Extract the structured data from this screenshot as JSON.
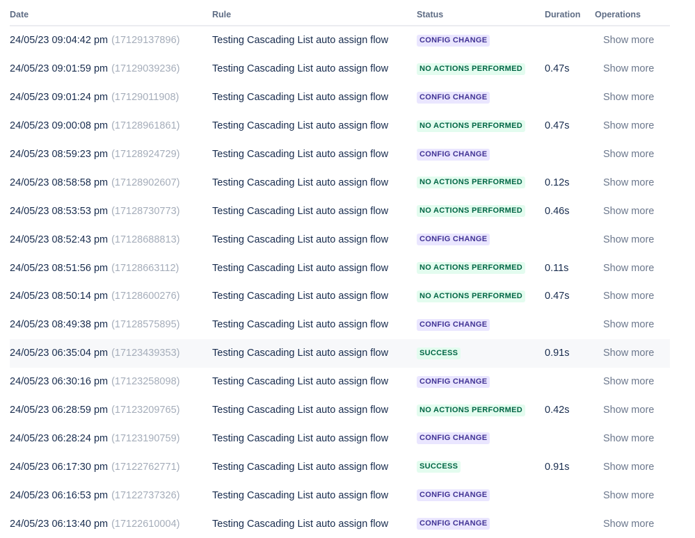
{
  "headers": {
    "date": "Date",
    "rule": "Rule",
    "status": "Status",
    "duration": "Duration",
    "operations": "Operations"
  },
  "status_colors": {
    "config": {
      "bg": "#eae6ff",
      "fg": "#403294"
    },
    "noaction": {
      "bg": "#e3fcef",
      "fg": "#006644"
    },
    "success": {
      "bg": "#e3fcef",
      "fg": "#006644"
    }
  },
  "rows": [
    {
      "date": "24/05/23 09:04:42 pm",
      "id": "(17129137896)",
      "rule": "Testing Cascading List auto assign flow",
      "status": "CONFIG CHANGE",
      "status_type": "config",
      "duration": "",
      "action": "Show more"
    },
    {
      "date": "24/05/23 09:01:59 pm",
      "id": "(17129039236)",
      "rule": "Testing Cascading List auto assign flow",
      "status": "NO ACTIONS PERFORMED",
      "status_type": "noaction",
      "duration": "0.47s",
      "action": "Show more"
    },
    {
      "date": "24/05/23 09:01:24 pm",
      "id": "(17129011908)",
      "rule": "Testing Cascading List auto assign flow",
      "status": "CONFIG CHANGE",
      "status_type": "config",
      "duration": "",
      "action": "Show more"
    },
    {
      "date": "24/05/23 09:00:08 pm",
      "id": "(17128961861)",
      "rule": "Testing Cascading List auto assign flow",
      "status": "NO ACTIONS PERFORMED",
      "status_type": "noaction",
      "duration": "0.47s",
      "action": "Show more"
    },
    {
      "date": "24/05/23 08:59:23 pm",
      "id": "(17128924729)",
      "rule": "Testing Cascading List auto assign flow",
      "status": "CONFIG CHANGE",
      "status_type": "config",
      "duration": "",
      "action": "Show more"
    },
    {
      "date": "24/05/23 08:58:58 pm",
      "id": "(17128902607)",
      "rule": "Testing Cascading List auto assign flow",
      "status": "NO ACTIONS PERFORMED",
      "status_type": "noaction",
      "duration": "0.12s",
      "action": "Show more"
    },
    {
      "date": "24/05/23 08:53:53 pm",
      "id": "(17128730773)",
      "rule": "Testing Cascading List auto assign flow",
      "status": "NO ACTIONS PERFORMED",
      "status_type": "noaction",
      "duration": "0.46s",
      "action": "Show more"
    },
    {
      "date": "24/05/23 08:52:43 pm",
      "id": "(17128688813)",
      "rule": "Testing Cascading List auto assign flow",
      "status": "CONFIG CHANGE",
      "status_type": "config",
      "duration": "",
      "action": "Show more"
    },
    {
      "date": "24/05/23 08:51:56 pm",
      "id": "(17128663112)",
      "rule": "Testing Cascading List auto assign flow",
      "status": "NO ACTIONS PERFORMED",
      "status_type": "noaction",
      "duration": "0.11s",
      "action": "Show more"
    },
    {
      "date": "24/05/23 08:50:14 pm",
      "id": "(17128600276)",
      "rule": "Testing Cascading List auto assign flow",
      "status": "NO ACTIONS PERFORMED",
      "status_type": "noaction",
      "duration": "0.47s",
      "action": "Show more"
    },
    {
      "date": "24/05/23 08:49:38 pm",
      "id": "(17128575895)",
      "rule": "Testing Cascading List auto assign flow",
      "status": "CONFIG CHANGE",
      "status_type": "config",
      "duration": "",
      "action": "Show more"
    },
    {
      "date": "24/05/23 06:35:04 pm",
      "id": "(17123439353)",
      "rule": "Testing Cascading List auto assign flow",
      "status": "SUCCESS",
      "status_type": "success",
      "duration": "0.91s",
      "action": "Show more",
      "highlighted": true
    },
    {
      "date": "24/05/23 06:30:16 pm",
      "id": "(17123258098)",
      "rule": "Testing Cascading List auto assign flow",
      "status": "CONFIG CHANGE",
      "status_type": "config",
      "duration": "",
      "action": "Show more"
    },
    {
      "date": "24/05/23 06:28:59 pm",
      "id": "(17123209765)",
      "rule": "Testing Cascading List auto assign flow",
      "status": "NO ACTIONS PERFORMED",
      "status_type": "noaction",
      "duration": "0.42s",
      "action": "Show more"
    },
    {
      "date": "24/05/23 06:28:24 pm",
      "id": "(17123190759)",
      "rule": "Testing Cascading List auto assign flow",
      "status": "CONFIG CHANGE",
      "status_type": "config",
      "duration": "",
      "action": "Show more"
    },
    {
      "date": "24/05/23 06:17:30 pm",
      "id": "(17122762771)",
      "rule": "Testing Cascading List auto assign flow",
      "status": "SUCCESS",
      "status_type": "success",
      "duration": "0.91s",
      "action": "Show more"
    },
    {
      "date": "24/05/23 06:16:53 pm",
      "id": "(17122737326)",
      "rule": "Testing Cascading List auto assign flow",
      "status": "CONFIG CHANGE",
      "status_type": "config",
      "duration": "",
      "action": "Show more"
    },
    {
      "date": "24/05/23 06:13:40 pm",
      "id": "(17122610004)",
      "rule": "Testing Cascading List auto assign flow",
      "status": "CONFIG CHANGE",
      "status_type": "config",
      "duration": "",
      "action": "Show more"
    }
  ]
}
